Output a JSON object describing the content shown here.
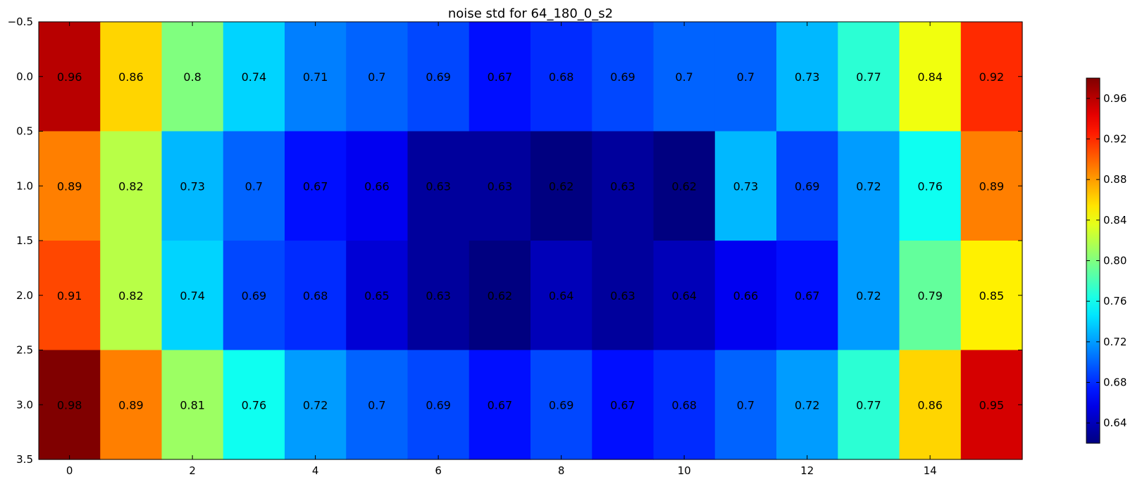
{
  "chart_data": {
    "type": "heatmap",
    "title": "noise std for 64_180_0_s2",
    "colormap": "jet",
    "color_range": [
      0.62,
      0.98
    ],
    "rows": 4,
    "cols": 16,
    "values": [
      [
        0.96,
        0.86,
        0.8,
        0.74,
        0.71,
        0.7,
        0.69,
        0.67,
        0.68,
        0.69,
        0.7,
        0.7,
        0.73,
        0.77,
        0.84,
        0.92
      ],
      [
        0.89,
        0.82,
        0.73,
        0.7,
        0.67,
        0.66,
        0.63,
        0.63,
        0.62,
        0.63,
        0.62,
        0.73,
        0.69,
        0.72,
        0.76,
        0.89
      ],
      [
        0.91,
        0.82,
        0.74,
        0.69,
        0.68,
        0.65,
        0.63,
        0.62,
        0.64,
        0.63,
        0.64,
        0.66,
        0.67,
        0.72,
        0.79,
        0.85
      ],
      [
        0.98,
        0.89,
        0.81,
        0.76,
        0.72,
        0.7,
        0.69,
        0.67,
        0.69,
        0.67,
        0.68,
        0.7,
        0.72,
        0.77,
        0.86,
        0.95
      ]
    ],
    "x_ticks": [
      0,
      2,
      4,
      6,
      8,
      10,
      12,
      14
    ],
    "x_tick_labels": [
      "0",
      "2",
      "4",
      "6",
      "8",
      "10",
      "12",
      "14"
    ],
    "xlim": [
      -0.5,
      15.5
    ],
    "y_ticks": [
      -0.5,
      0.0,
      0.5,
      1.0,
      1.5,
      2.0,
      2.5,
      3.0,
      3.5
    ],
    "y_tick_labels": [
      "−0.5",
      "0.0",
      "0.5",
      "1.0",
      "1.5",
      "2.0",
      "2.5",
      "3.0",
      "3.5"
    ],
    "ylim": [
      3.5,
      -0.5
    ],
    "colorbar": {
      "ticks": [
        0.64,
        0.68,
        0.72,
        0.76,
        0.8,
        0.84,
        0.88,
        0.92,
        0.96
      ],
      "tick_labels": [
        "0.64",
        "0.68",
        "0.72",
        "0.76",
        "0.80",
        "0.84",
        "0.88",
        "0.92",
        "0.96"
      ]
    },
    "xlabel": "",
    "ylabel": ""
  }
}
